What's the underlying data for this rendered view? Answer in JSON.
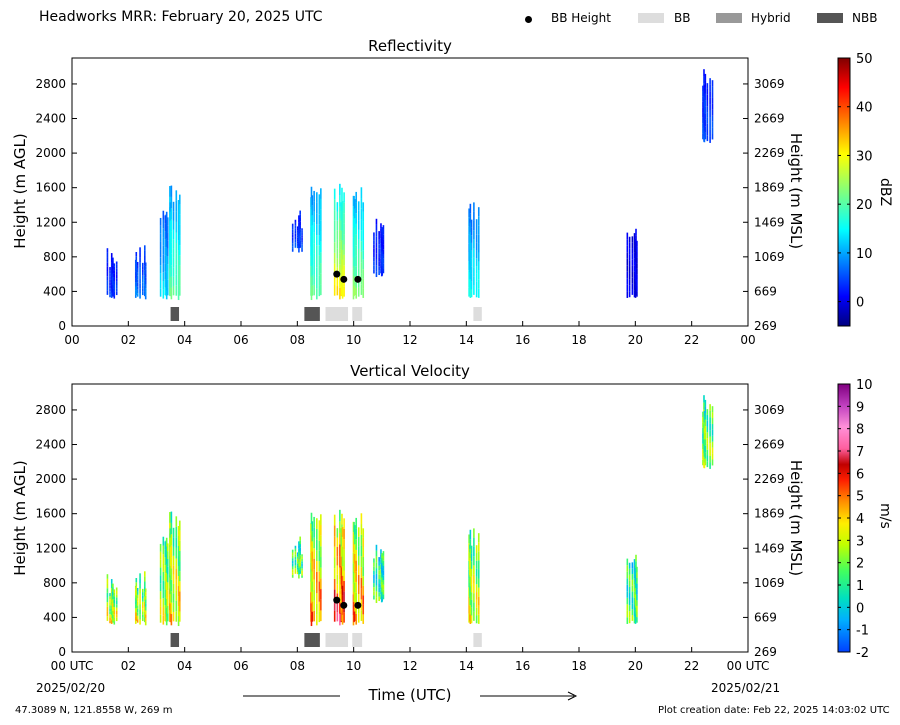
{
  "header": {
    "title": "Headworks MRR:  February 20, 2025 UTC",
    "legend": [
      {
        "label": "BB Height",
        "symbol": "dot",
        "color": "#000000"
      },
      {
        "label": "BB",
        "symbol": "rect",
        "color": "#dddddd"
      },
      {
        "label": "Hybrid",
        "symbol": "rect",
        "color": "#999999"
      },
      {
        "label": "NBB",
        "symbol": "rect",
        "color": "#555555"
      }
    ]
  },
  "footer": {
    "location": "47.3089 N, 121.8558 W, 269 m",
    "creation": "Plot creation date: Feb 22, 2025 14:03:02 UTC",
    "xlabel": "Time (UTC)",
    "start_date": "2025/02/20",
    "end_date": "2025/02/21"
  },
  "chart_data": [
    {
      "type": "heatmap",
      "title": "Reflectivity",
      "ylabel": "Height (m AGL)",
      "ylabel_right": "Height (m MSL)",
      "xlim": [
        0,
        24
      ],
      "ylim": [
        0,
        3100
      ],
      "x_ticks": [
        "00",
        "02",
        "04",
        "06",
        "08",
        "10",
        "12",
        "14",
        "16",
        "18",
        "20",
        "22",
        "00"
      ],
      "y_ticks": [
        0,
        400,
        800,
        1200,
        1600,
        2000,
        2400,
        2800
      ],
      "y_ticks_right": [
        "269",
        "669",
        "1069",
        "1469",
        "1869",
        "2269",
        "2669",
        "3069"
      ],
      "colorbar": {
        "label": "dBZ",
        "min": -5,
        "max": 50,
        "ticks": [
          0,
          10,
          20,
          30,
          40,
          50
        ],
        "colormap": "jet"
      },
      "bright_band_height": [
        {
          "time": 9.4,
          "height": 600
        },
        {
          "time": 9.65,
          "height": 540
        },
        {
          "time": 10.15,
          "height": 540
        }
      ],
      "bb_bars": [
        {
          "start": 3.5,
          "end": 3.8,
          "class": "NBB"
        },
        {
          "start": 8.25,
          "end": 8.8,
          "class": "NBB"
        },
        {
          "start": 9.0,
          "end": 9.8,
          "class": "BB"
        },
        {
          "start": 9.95,
          "end": 10.3,
          "class": "BB"
        },
        {
          "start": 14.25,
          "end": 14.55,
          "class": "BB"
        }
      ],
      "echo_segments": [
        {
          "time": 1.4,
          "top": 900,
          "bottom": 300,
          "value": 3
        },
        {
          "time": 2.4,
          "top": 950,
          "bottom": 300,
          "value": 6
        },
        {
          "time": 3.3,
          "top": 1450,
          "bottom": 300,
          "value": 10
        },
        {
          "time": 3.6,
          "top": 1650,
          "bottom": 300,
          "value": 16
        },
        {
          "time": 8.0,
          "top": 1350,
          "bottom": 850,
          "value": 4
        },
        {
          "time": 8.6,
          "top": 1700,
          "bottom": 300,
          "value": 16
        },
        {
          "time": 9.5,
          "top": 1650,
          "bottom": 300,
          "value": 24
        },
        {
          "time": 10.1,
          "top": 1650,
          "bottom": 300,
          "value": 18
        },
        {
          "time": 10.9,
          "top": 1300,
          "bottom": 550,
          "value": 3
        },
        {
          "time": 14.2,
          "top": 1450,
          "bottom": 300,
          "value": 12
        },
        {
          "time": 19.9,
          "top": 1200,
          "bottom": 300,
          "value": 0
        },
        {
          "time": 22.5,
          "top": 3000,
          "bottom": 2100,
          "value": 4
        }
      ]
    },
    {
      "type": "heatmap",
      "title": "Vertical Velocity",
      "ylabel": "Height (m AGL)",
      "ylabel_right": "Height (m MSL)",
      "xlim": [
        0,
        24
      ],
      "ylim": [
        0,
        3100
      ],
      "x_ticks": [
        "00 UTC",
        "02",
        "04",
        "06",
        "08",
        "10",
        "12",
        "14",
        "16",
        "18",
        "20",
        "22",
        "00 UTC"
      ],
      "y_ticks": [
        0,
        400,
        800,
        1200,
        1600,
        2000,
        2400,
        2800
      ],
      "y_ticks_right": [
        "269",
        "669",
        "1069",
        "1469",
        "1869",
        "2269",
        "2669",
        "3069"
      ],
      "colorbar": {
        "label": "m/s",
        "min": -2,
        "max": 10,
        "ticks": [
          -2,
          -1,
          0,
          1,
          2,
          3,
          4,
          5,
          6,
          7,
          8,
          9,
          10
        ],
        "colormap": "velocity"
      },
      "bright_band_height": [
        {
          "time": 9.4,
          "height": 600
        },
        {
          "time": 9.65,
          "height": 540
        },
        {
          "time": 10.15,
          "height": 540
        }
      ],
      "bb_bars": [
        {
          "start": 3.5,
          "end": 3.8,
          "class": "NBB"
        },
        {
          "start": 8.25,
          "end": 8.8,
          "class": "NBB"
        },
        {
          "start": 9.0,
          "end": 9.8,
          "class": "BB"
        },
        {
          "start": 9.95,
          "end": 10.3,
          "class": "BB"
        },
        {
          "start": 14.25,
          "end": 14.55,
          "class": "BB"
        }
      ],
      "echo_segments": [
        {
          "time": 1.4,
          "top": 900,
          "bottom": 300,
          "value": 2.5
        },
        {
          "time": 2.4,
          "top": 950,
          "bottom": 300,
          "value": 2.5
        },
        {
          "time": 3.3,
          "top": 1450,
          "bottom": 300,
          "value": 2.2
        },
        {
          "time": 3.6,
          "top": 1650,
          "bottom": 300,
          "value": 2.8
        },
        {
          "time": 8.0,
          "top": 1350,
          "bottom": 850,
          "value": 1.5
        },
        {
          "time": 8.6,
          "top": 1700,
          "bottom": 300,
          "value": 3.5
        },
        {
          "time": 9.5,
          "top": 1650,
          "bottom": 300,
          "value": 4.5
        },
        {
          "time": 10.1,
          "top": 1650,
          "bottom": 300,
          "value": 3.5
        },
        {
          "time": 10.9,
          "top": 1300,
          "bottom": 550,
          "value": 1
        },
        {
          "time": 14.2,
          "top": 1450,
          "bottom": 300,
          "value": 2.5
        },
        {
          "time": 19.9,
          "top": 1200,
          "bottom": 300,
          "value": 1.2
        },
        {
          "time": 22.5,
          "top": 3000,
          "bottom": 2100,
          "value": 1.8
        }
      ]
    }
  ]
}
